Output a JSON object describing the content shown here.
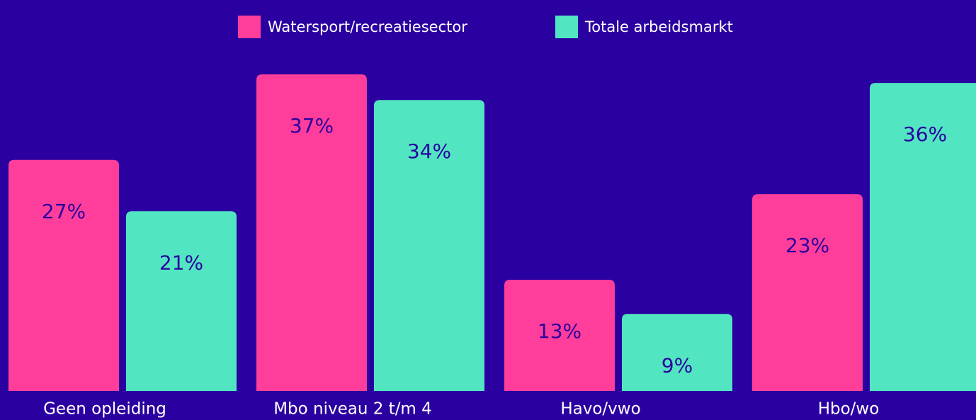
{
  "chart_data": {
    "type": "bar",
    "categories": [
      "Geen opleiding",
      "Mbo niveau 2 t/m 4",
      "Havo/vwo",
      "Hbo/wo"
    ],
    "series": [
      {
        "name": "Watersport/recreatiesector",
        "color": "#ff3d9a",
        "values": [
          27,
          37,
          13,
          23
        ],
        "value_labels": [
          "27%",
          "37%",
          "13%",
          "23%"
        ]
      },
      {
        "name": "Totale arbeidsmarkt",
        "color": "#52e5c2",
        "values": [
          21,
          34,
          9,
          36
        ],
        "value_labels": [
          "21%",
          "34%",
          "9%",
          "36%"
        ]
      }
    ],
    "ylim": [
      0,
      37
    ],
    "legend": "top"
  }
}
